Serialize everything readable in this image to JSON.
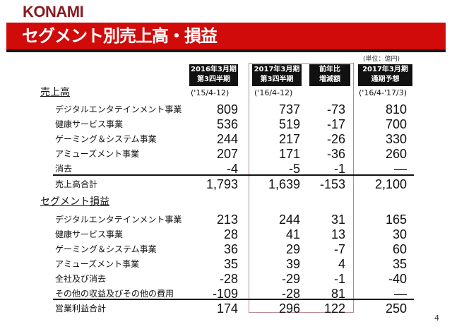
{
  "logo": "KONAMI",
  "title": "セグメント別売上高・損益",
  "unit": "(単位：億円)",
  "columns": [
    {
      "line1": "2016年3月期",
      "line2": "第3四半期",
      "period": "('15/4-12)"
    },
    {
      "line1": "2017年3月期",
      "line2": "第3四半期",
      "period": "('16/4-12)"
    },
    {
      "line1": "前年比",
      "line2": "増減額",
      "period": ""
    },
    {
      "line1": "2017年3月期",
      "line2": "通期予想",
      "period": "('16/4-'17/3)"
    }
  ],
  "accent_color": "#d10a0a",
  "sales": {
    "heading": "売上高",
    "rows": [
      {
        "label": "デジタルエンタテインメント事業",
        "v": [
          "809",
          "737",
          "-73",
          "810"
        ]
      },
      {
        "label": "健康サービス事業",
        "v": [
          "536",
          "519",
          "-17",
          "700"
        ]
      },
      {
        "label": "ゲーミング＆システム事業",
        "v": [
          "244",
          "217",
          "-26",
          "330"
        ]
      },
      {
        "label": "アミューズメント事業",
        "v": [
          "207",
          "171",
          "-36",
          "260"
        ]
      },
      {
        "label": "消去",
        "v": [
          "-4",
          "-5",
          "-1",
          "—"
        ]
      }
    ],
    "total": {
      "label": "売上高合計",
      "v": [
        "1,793",
        "1,639",
        "-153",
        "2,100"
      ]
    }
  },
  "profit": {
    "heading": "セグメント損益",
    "rows": [
      {
        "label": "デジタルエンタテインメント事業",
        "v": [
          "213",
          "244",
          "31",
          "165"
        ]
      },
      {
        "label": "健康サービス事業",
        "v": [
          "28",
          "41",
          "13",
          "30"
        ]
      },
      {
        "label": "ゲーミング＆システム事業",
        "v": [
          "36",
          "29",
          "-7",
          "60"
        ]
      },
      {
        "label": "アミューズメント事業",
        "v": [
          "35",
          "39",
          "4",
          "35"
        ]
      },
      {
        "label": "全社及び消去",
        "v": [
          "-28",
          "-29",
          "-1",
          "-40"
        ]
      },
      {
        "label": "その他の収益及びその他の費用",
        "v": [
          "-109",
          "-28",
          "81",
          "—"
        ]
      }
    ],
    "total": {
      "label": "営業利益合計",
      "v": [
        "174",
        "296",
        "122",
        "250"
      ]
    }
  },
  "page_number": "4"
}
